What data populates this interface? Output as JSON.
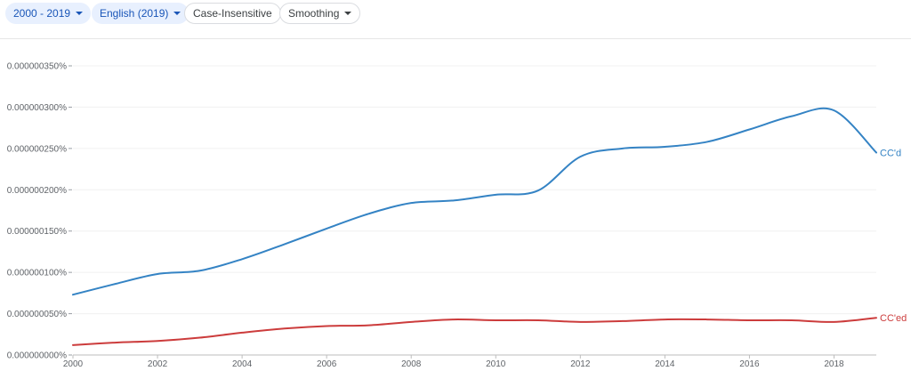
{
  "toolbar": {
    "year_range": "2000 - 2019",
    "corpus": "English (2019)",
    "case_insensitive": "Case-Insensitive",
    "smoothing": "Smoothing"
  },
  "colors": {
    "chip_bg": "#e8f0fe",
    "chip_text": "#1a56b8",
    "series1": "#3483c4",
    "series2": "#cc3c3c"
  },
  "chart_data": {
    "type": "line",
    "x": [
      2000,
      2001,
      2002,
      2003,
      2004,
      2005,
      2006,
      2007,
      2008,
      2009,
      2010,
      2011,
      2012,
      2013,
      2014,
      2015,
      2016,
      2017,
      2018,
      2019
    ],
    "series": [
      {
        "name": "CC'd",
        "color": "#3483c4",
        "values": [
          7.3e-08,
          8.6e-08,
          9.8e-08,
          1.02e-07,
          1.16e-07,
          1.34e-07,
          1.53e-07,
          1.71e-07,
          1.84e-07,
          1.87e-07,
          1.94e-07,
          1.99e-07,
          2.4e-07,
          2.5e-07,
          2.52e-07,
          2.58e-07,
          2.73e-07,
          2.89e-07,
          2.96e-07,
          2.45e-07
        ]
      },
      {
        "name": "CC'ed",
        "color": "#cc3c3c",
        "values": [
          1.2e-08,
          1.5e-08,
          1.7e-08,
          2.1e-08,
          2.7e-08,
          3.2e-08,
          3.5e-08,
          3.6e-08,
          4e-08,
          4.3e-08,
          4.2e-08,
          4.2e-08,
          4e-08,
          4.1e-08,
          4.3e-08,
          4.3e-08,
          4.2e-08,
          4.2e-08,
          4e-08,
          4.5e-08
        ]
      }
    ],
    "y_ticks": [
      "0.000000000%",
      "0.000000050%",
      "0.000000100%",
      "0.000000150%",
      "0.000000200%",
      "0.000000250%",
      "0.000000300%",
      "0.000000350%"
    ],
    "y_tick_values": [
      0,
      5e-08,
      1e-07,
      1.5e-07,
      2e-07,
      2.5e-07,
      3e-07,
      3.5e-07
    ],
    "x_ticks": [
      "2000",
      "2002",
      "2004",
      "2006",
      "2008",
      "2010",
      "2012",
      "2014",
      "2016",
      "2018"
    ],
    "x_tick_values": [
      2000,
      2002,
      2004,
      2006,
      2008,
      2010,
      2012,
      2014,
      2016,
      2018
    ],
    "xlim": [
      2000,
      2019
    ],
    "ylim": [
      0,
      3.5e-07
    ],
    "grid": true,
    "legend": "inline-right"
  }
}
